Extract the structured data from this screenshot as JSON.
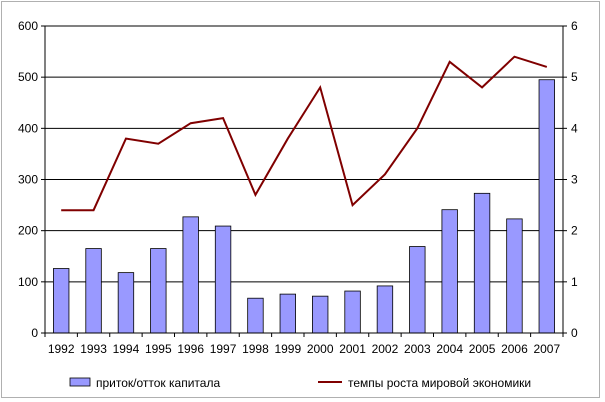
{
  "chart_data": {
    "type": "bar",
    "categories": [
      "1992",
      "1993",
      "1994",
      "1995",
      "1996",
      "1997",
      "1998",
      "1999",
      "2000",
      "2001",
      "2002",
      "2003",
      "2004",
      "2005",
      "2006",
      "2007"
    ],
    "series": [
      {
        "name": "приток/отток капитала",
        "type": "bar",
        "axis": "left",
        "color": "#9999ff",
        "values": [
          126,
          165,
          118,
          165,
          227,
          209,
          68,
          76,
          72,
          82,
          92,
          169,
          241,
          273,
          223,
          495
        ]
      },
      {
        "name": "темпы роста мировой экономики",
        "type": "line",
        "axis": "right",
        "color": "#800000",
        "values": [
          2.4,
          2.4,
          3.8,
          3.7,
          4.1,
          4.2,
          2.7,
          3.8,
          4.8,
          2.5,
          3.1,
          4.0,
          5.3,
          4.8,
          5.4,
          5.2
        ]
      }
    ],
    "ylim_left": [
      0,
      600
    ],
    "yticks_left": [
      "0",
      "100",
      "200",
      "300",
      "400",
      "500",
      "600"
    ],
    "ylim_right": [
      0,
      6
    ],
    "yticks_right": [
      "0",
      "1",
      "2",
      "3",
      "4",
      "5",
      "6"
    ],
    "grid": true,
    "legend_position": "bottom"
  }
}
